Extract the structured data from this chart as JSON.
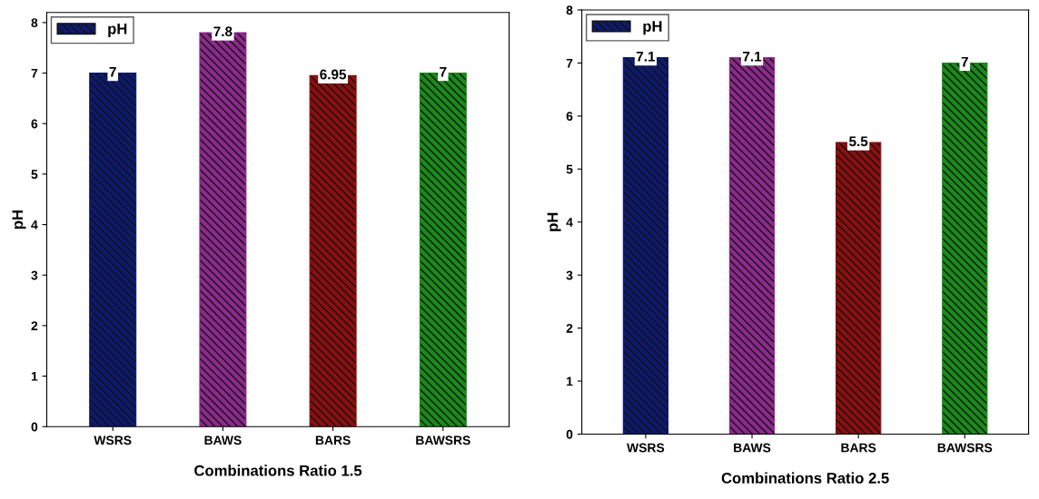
{
  "chart_data": [
    {
      "type": "bar",
      "xlabel": "Combinations Ratio 1.5",
      "ylabel": "pH",
      "categories": [
        "WSRS",
        "BAWS",
        "BARS",
        "BAWSRS"
      ],
      "series": [
        {
          "name": "pH",
          "color": "#0d1a6e",
          "colors": [
            "#0d1a6e",
            "#8b2a8b",
            "#8b0f0f",
            "#1a8a1a"
          ],
          "values": [
            7,
            7.8,
            6.95,
            7
          ]
        }
      ],
      "ylim": [
        0,
        8.2
      ],
      "yticks": [
        0,
        1,
        2,
        3,
        4,
        5,
        6,
        7,
        8
      ],
      "data_labels": true,
      "legend": "top left",
      "grid": false
    },
    {
      "type": "bar",
      "xlabel": "Combinations Ratio 2.5",
      "ylabel": "pH",
      "categories": [
        "WSRS",
        "BAWS",
        "BARS",
        "BAWSRS"
      ],
      "series": [
        {
          "name": "pH",
          "color": "#0d1a6e",
          "colors": [
            "#0d1a6e",
            "#8b2a8b",
            "#8b0f0f",
            "#1a8a1a"
          ],
          "values": [
            7.1,
            7.1,
            5.5,
            7
          ]
        }
      ],
      "ylim": [
        0,
        8
      ],
      "yticks": [
        0,
        1,
        2,
        3,
        4,
        5,
        6,
        7,
        8
      ],
      "data_labels": true,
      "legend": "top left",
      "grid": false
    }
  ]
}
